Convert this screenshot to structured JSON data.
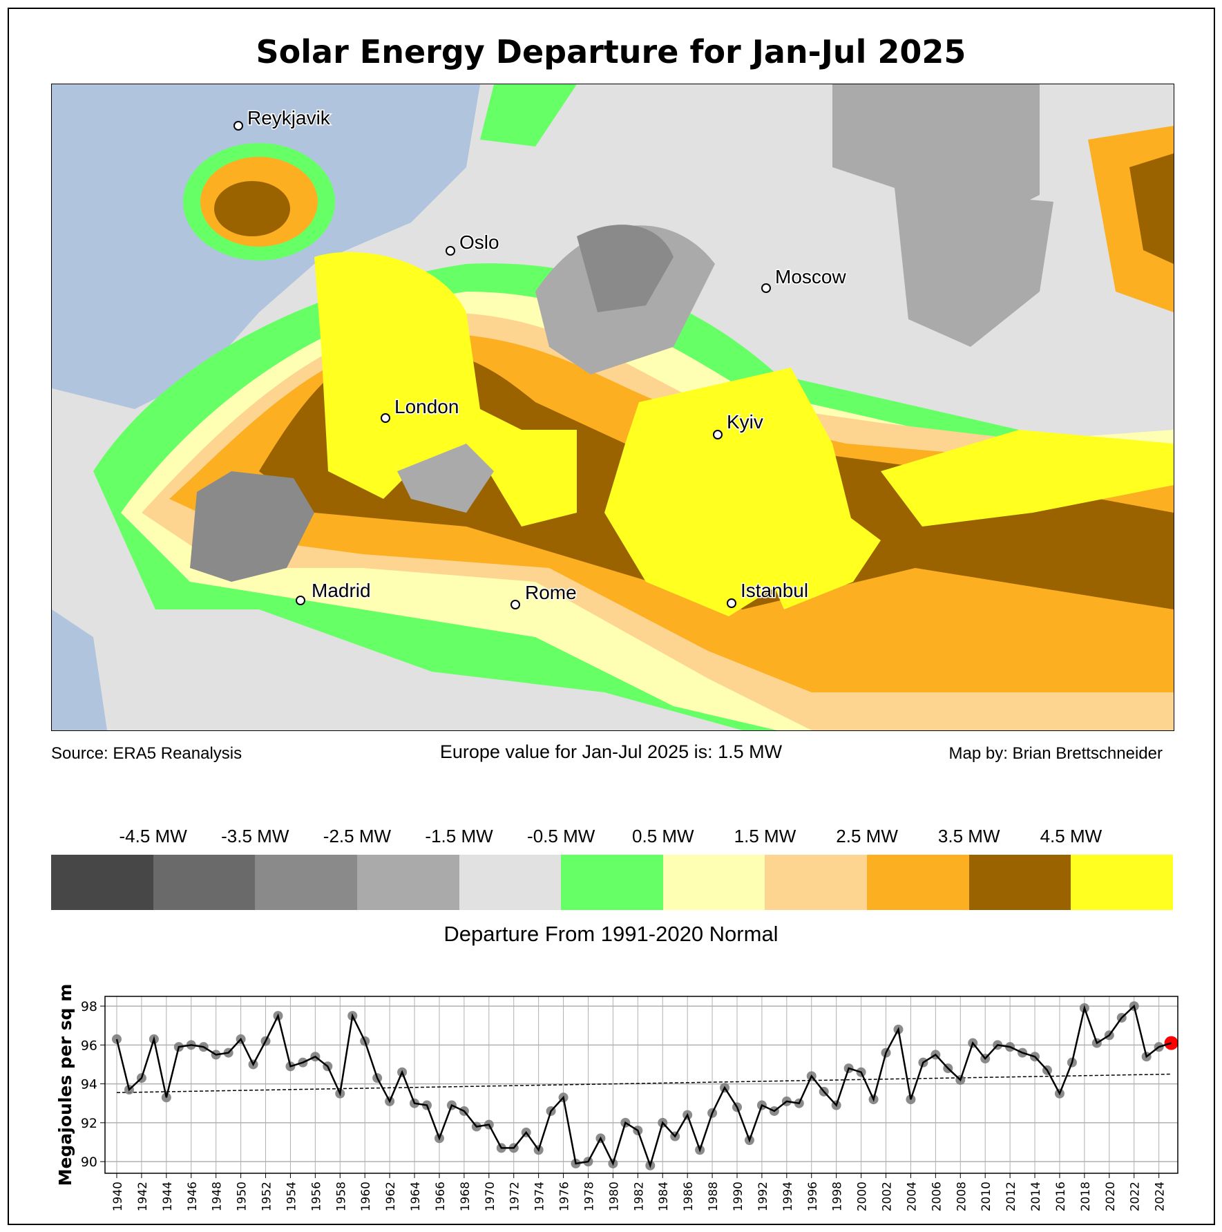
{
  "title": "Solar Energy Departure for Jan-Jul 2025",
  "footer": {
    "source": "Source: ERA5 Reanalysis",
    "value": "Europe value for Jan-Jul 2025 is: 1.5 MW",
    "credit": "Map by: Brian Brettschneider"
  },
  "cities": [
    {
      "name": "Reykjavik"
    },
    {
      "name": "Oslo"
    },
    {
      "name": "Moscow"
    },
    {
      "name": "London"
    },
    {
      "name": "Kyiv"
    },
    {
      "name": "Madrid"
    },
    {
      "name": "Rome"
    },
    {
      "name": "Istanbul"
    }
  ],
  "colorbar": {
    "labels": [
      "-4.5 MW",
      "-3.5 MW",
      "-2.5 MW",
      "-1.5 MW",
      "-0.5 MW",
      "0.5 MW",
      "1.5 MW",
      "2.5 MW",
      "3.5 MW",
      "4.5 MW"
    ],
    "colors": [
      "#474747",
      "#6a6a6a",
      "#8a8a8a",
      "#aaaaaa",
      "#e1e1e1",
      "#66ff66",
      "#ffffb4",
      "#fdd590",
      "#fdaf22",
      "#9a6300",
      "#ffff20"
    ],
    "caption": "Departure From 1991-2020 Normal"
  },
  "ocean_color": "#b0c4de",
  "chart_data": {
    "type": "line",
    "ylabel": "Megajoules per sq m",
    "xlabel": "",
    "ylim": [
      89.4,
      98.5
    ],
    "yticks": [
      90,
      92,
      94,
      96,
      98
    ],
    "x": [
      1940,
      1941,
      1942,
      1943,
      1944,
      1945,
      1946,
      1947,
      1948,
      1949,
      1950,
      1951,
      1952,
      1953,
      1954,
      1955,
      1956,
      1957,
      1958,
      1959,
      1960,
      1961,
      1962,
      1963,
      1964,
      1965,
      1966,
      1967,
      1968,
      1969,
      1970,
      1971,
      1972,
      1973,
      1974,
      1975,
      1976,
      1977,
      1978,
      1979,
      1980,
      1981,
      1982,
      1983,
      1984,
      1985,
      1986,
      1987,
      1988,
      1989,
      1990,
      1991,
      1992,
      1993,
      1994,
      1995,
      1996,
      1997,
      1998,
      1999,
      2000,
      2001,
      2002,
      2003,
      2004,
      2005,
      2006,
      2007,
      2008,
      2009,
      2010,
      2011,
      2012,
      2013,
      2014,
      2015,
      2016,
      2017,
      2018,
      2019,
      2020,
      2021,
      2022,
      2023,
      2024,
      2025
    ],
    "values": [
      96.3,
      93.7,
      94.3,
      96.3,
      93.3,
      95.9,
      96.0,
      95.9,
      95.5,
      95.6,
      96.3,
      95.0,
      96.2,
      97.5,
      94.9,
      95.1,
      95.4,
      94.9,
      93.5,
      97.5,
      96.2,
      94.3,
      93.1,
      94.6,
      93.0,
      92.9,
      91.2,
      92.9,
      92.6,
      91.8,
      91.9,
      90.7,
      90.7,
      91.5,
      90.6,
      92.6,
      93.3,
      89.9,
      90.0,
      91.2,
      89.9,
      92.0,
      91.6,
      89.8,
      92.0,
      91.3,
      92.4,
      90.6,
      92.5,
      93.8,
      92.8,
      91.1,
      92.9,
      92.6,
      93.1,
      93.0,
      94.4,
      93.6,
      92.9,
      94.8,
      94.6,
      93.2,
      95.6,
      96.8,
      93.2,
      95.1,
      95.5,
      94.8,
      94.2,
      96.1,
      95.3,
      96.0,
      95.9,
      95.6,
      95.4,
      94.7,
      93.5,
      95.1,
      97.9,
      96.1,
      96.5,
      97.4,
      98.0,
      95.4,
      95.9,
      96.1
    ],
    "trend": {
      "start": 93.55,
      "end": 94.5
    },
    "highlight_year": 2025,
    "highlight_color": "#ff0000",
    "xticks": [
      1940,
      1942,
      1944,
      1946,
      1948,
      1950,
      1952,
      1954,
      1956,
      1958,
      1960,
      1962,
      1964,
      1966,
      1968,
      1970,
      1972,
      1974,
      1976,
      1978,
      1980,
      1982,
      1984,
      1986,
      1988,
      1990,
      1992,
      1994,
      1996,
      1998,
      2000,
      2002,
      2004,
      2006,
      2008,
      2010,
      2012,
      2014,
      2016,
      2018,
      2020,
      2022,
      2024
    ],
    "grid": true
  }
}
